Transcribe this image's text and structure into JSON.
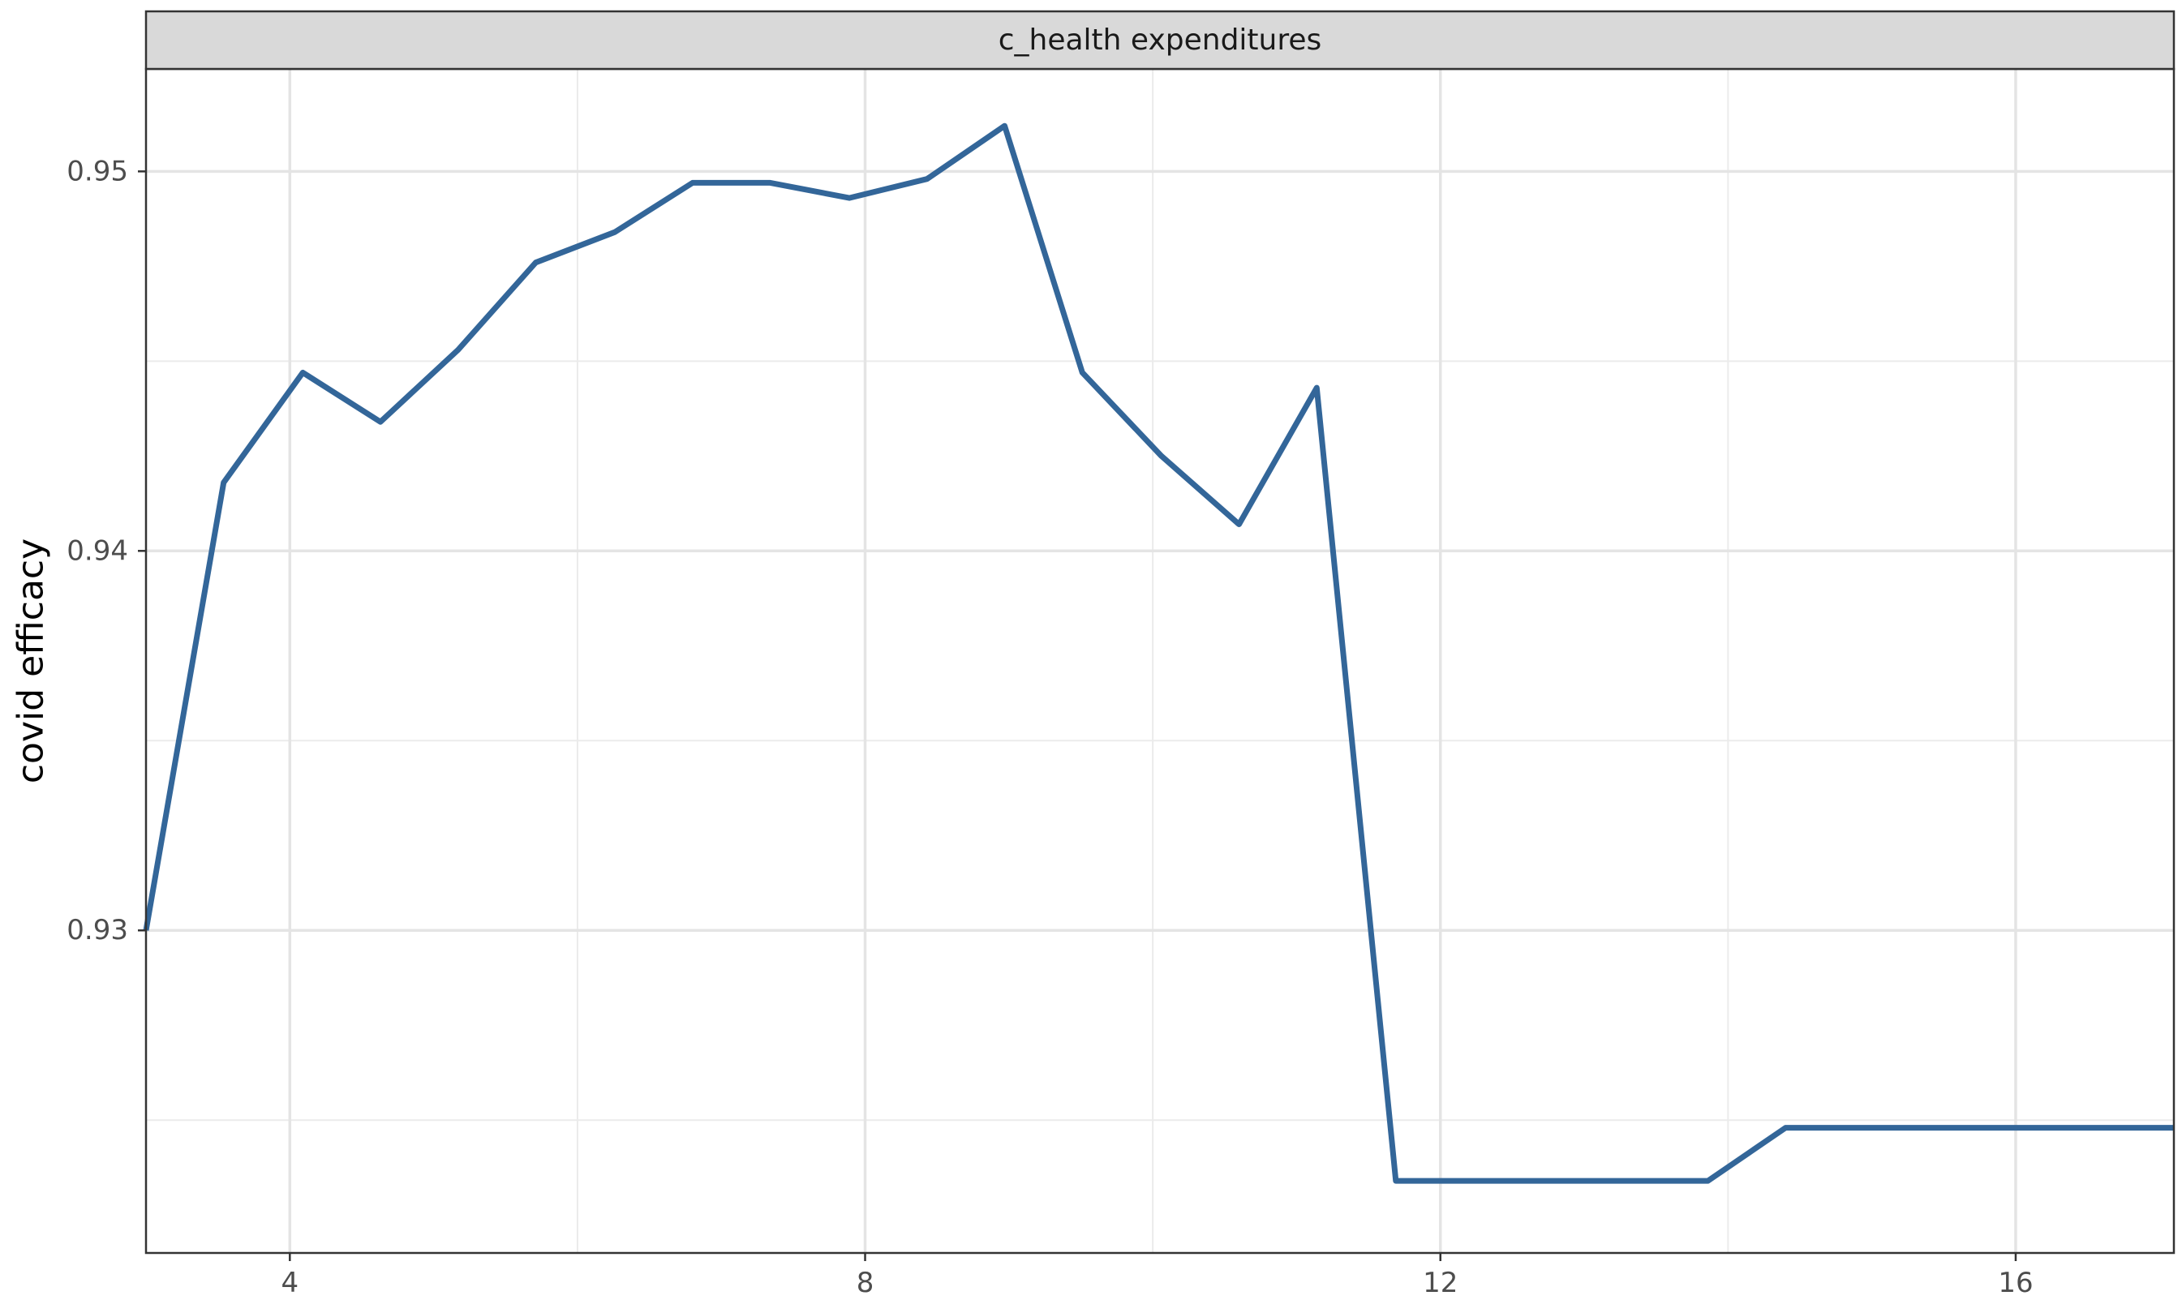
{
  "chart_data": {
    "type": "line",
    "facet_label": "c_health expenditures",
    "xlabel": "",
    "ylabel": "covid efficacy",
    "xlim": [
      3.0,
      17.1
    ],
    "ylim": [
      0.9215,
      0.9527
    ],
    "x_ticks": [
      4,
      8,
      12,
      16
    ],
    "x_tick_labels": [
      "4",
      "8",
      "12",
      "16"
    ],
    "x_minor_ticks": [
      6,
      10,
      14
    ],
    "y_ticks": [
      0.93,
      0.94,
      0.95
    ],
    "y_tick_labels": [
      "0.93",
      "0.94",
      "0.95"
    ],
    "y_minor_ticks": [
      0.925,
      0.935,
      0.945
    ],
    "grid": true,
    "series": [
      {
        "color": "#336699",
        "x": [
          3.0,
          3.54,
          4.09,
          4.63,
          5.17,
          5.71,
          6.26,
          6.8,
          7.34,
          7.89,
          8.43,
          8.97,
          9.51,
          10.06,
          10.6,
          11.14,
          11.69,
          12.23,
          12.77,
          13.31,
          13.86,
          14.4,
          14.94,
          15.49,
          16.03,
          16.57,
          17.1
        ],
        "y": [
          0.93,
          0.9418,
          0.9447,
          0.9434,
          0.9453,
          0.9476,
          0.9484,
          0.9497,
          0.9497,
          0.9493,
          0.9498,
          0.9512,
          0.9447,
          0.9425,
          0.9407,
          0.9443,
          0.9234,
          0.9234,
          0.9234,
          0.9234,
          0.9234,
          0.9248,
          0.9248,
          0.9248,
          0.9248,
          0.9248,
          0.9248
        ]
      }
    ]
  }
}
